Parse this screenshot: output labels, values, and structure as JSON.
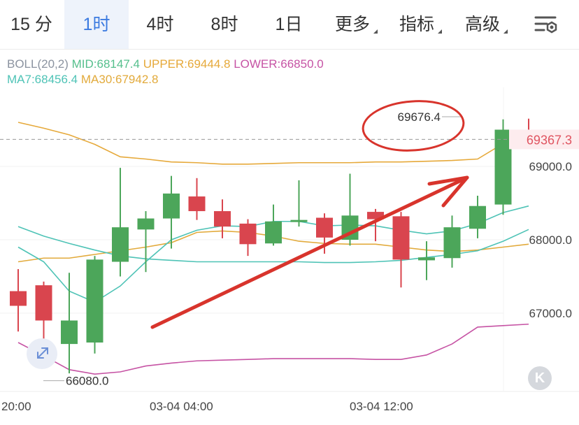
{
  "tabs": [
    {
      "label": "15 分",
      "active": false,
      "dropdown": false
    },
    {
      "label": "1时",
      "active": true,
      "dropdown": false
    },
    {
      "label": "4时",
      "active": false,
      "dropdown": false
    },
    {
      "label": "8时",
      "active": false,
      "dropdown": false
    },
    {
      "label": "1日",
      "active": false,
      "dropdown": false
    },
    {
      "label": "更多",
      "active": false,
      "dropdown": true
    },
    {
      "label": "指标",
      "active": false,
      "dropdown": true
    },
    {
      "label": "高级",
      "active": false,
      "dropdown": true
    }
  ],
  "settings_icon": "chart-settings-icon",
  "legend": {
    "boll_label": "BOLL(20,2)",
    "mid": "MID:68147.4",
    "upper": "UPPER:69444.8",
    "lower": "LOWER:66850.0",
    "ma7": "MA7:68456.4",
    "ma30": "MA30:67942.8"
  },
  "colors": {
    "up": "#4ca65a",
    "down": "#d9454e",
    "upper": "#e6a93a",
    "mid": "#4ec3b6",
    "lower": "#c653a4",
    "ma30": "#e2aa3b",
    "annotation": "#d8342c",
    "price_tag": "#e05561"
  },
  "chart_data": {
    "type": "candlestick",
    "y_ticks": [
      "69000.0",
      "68000.0",
      "67000.0"
    ],
    "x_ticks": [
      "20:00",
      "03-04 04:00",
      "03-04 12:00"
    ],
    "ylim": [
      66000,
      69800
    ],
    "grid": true,
    "candles": [
      {
        "o": 67300,
        "c": 67100,
        "h": 67600,
        "l": 66750
      },
      {
        "o": 67380,
        "c": 66900,
        "h": 67430,
        "l": 66580
      },
      {
        "o": 66580,
        "c": 66900,
        "h": 67550,
        "l": 66180
      },
      {
        "o": 66600,
        "c": 67730,
        "h": 67780,
        "l": 66450
      },
      {
        "o": 67700,
        "c": 68170,
        "h": 68980,
        "l": 67500
      },
      {
        "o": 68140,
        "c": 68290,
        "h": 68390,
        "l": 67560
      },
      {
        "o": 68290,
        "c": 68630,
        "h": 68870,
        "l": 67880
      },
      {
        "o": 68590,
        "c": 68390,
        "h": 68840,
        "l": 68270
      },
      {
        "o": 68390,
        "c": 68180,
        "h": 68550,
        "l": 68020
      },
      {
        "o": 68220,
        "c": 67940,
        "h": 68280,
        "l": 67780
      },
      {
        "o": 67950,
        "c": 68250,
        "h": 68480,
        "l": 67920
      },
      {
        "o": 68270,
        "c": 68270,
        "h": 68810,
        "l": 68180
      },
      {
        "o": 68300,
        "c": 68030,
        "h": 68360,
        "l": 67810
      },
      {
        "o": 68000,
        "c": 68330,
        "h": 68900,
        "l": 67920
      },
      {
        "o": 68380,
        "c": 68280,
        "h": 68420,
        "l": 67980
      },
      {
        "o": 68320,
        "c": 67730,
        "h": 68380,
        "l": 67350
      },
      {
        "o": 67720,
        "c": 67760,
        "h": 67980,
        "l": 67450
      },
      {
        "o": 67750,
        "c": 68170,
        "h": 68330,
        "l": 67620
      },
      {
        "o": 68150,
        "c": 68460,
        "h": 68600,
        "l": 68020
      },
      {
        "o": 68480,
        "c": 69500,
        "h": 69640,
        "l": 68340
      },
      {
        "o": 69500,
        "c": 69420,
        "h": 69650,
        "l": 69400
      }
    ],
    "upper_band": [
      69600,
      69520,
      69430,
      69300,
      69130,
      69100,
      69060,
      69050,
      69030,
      69030,
      69040,
      69050,
      69050,
      69050,
      69060,
      69060,
      69070,
      69080,
      69100,
      69310,
      69440
    ],
    "mid_band": [
      68180,
      68050,
      67950,
      67860,
      67780,
      67740,
      67720,
      67700,
      67700,
      67700,
      67700,
      67700,
      67690,
      67690,
      67700,
      67720,
      67760,
      67800,
      67850,
      67980,
      68140
    ],
    "lower_band": [
      66600,
      66420,
      66230,
      66170,
      66200,
      66280,
      66320,
      66350,
      66360,
      66370,
      66380,
      66380,
      66380,
      66380,
      66370,
      66370,
      66430,
      66580,
      66810,
      66830,
      66850
    ],
    "ma7": [
      67900,
      67700,
      67300,
      67150,
      67370,
      67700,
      68000,
      68130,
      68190,
      68180,
      68250,
      68250,
      68190,
      68200,
      68190,
      68130,
      68080,
      68120,
      68220,
      68370,
      68460
    ],
    "ma30": [
      67700,
      67750,
      67750,
      67800,
      67850,
      67900,
      67960,
      68100,
      68120,
      68100,
      68050,
      67980,
      67950,
      67940,
      67940,
      67900,
      67860,
      67840,
      67860,
      67900,
      67940
    ],
    "current_price": "69367.3",
    "current_price_value": 69367.3,
    "high_label": "69676.4",
    "high_value": 69676.4,
    "low_label": "66080.0",
    "low_value": 66080.0
  }
}
